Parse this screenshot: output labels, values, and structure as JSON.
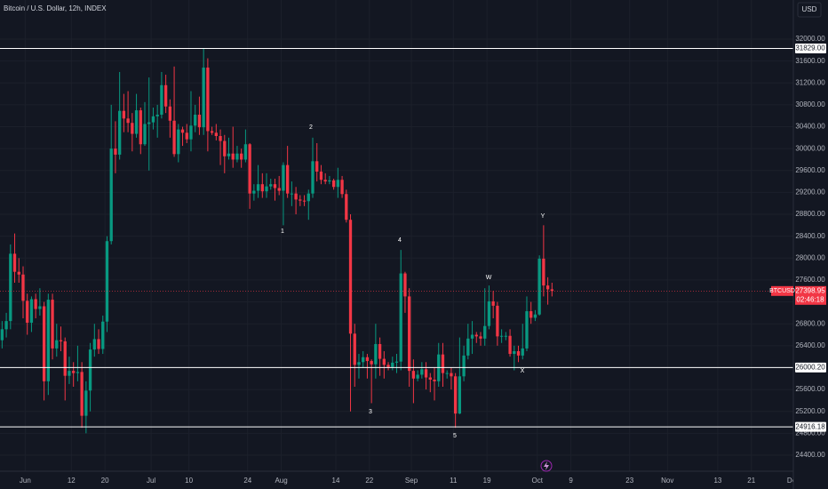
{
  "chart_data": {
    "type": "candlestick",
    "title": "Bitcoin / U.S. Dollar, 12h, INDEX",
    "currency": "USD",
    "up_color": "#089981",
    "down_color": "#f23645",
    "grid": true,
    "x": [
      "05-26",
      "05-27",
      "05-28",
      "05-29",
      "05-30",
      "05-31",
      "06-01",
      "06-02",
      "06-03",
      "06-04",
      "06-05",
      "06-06",
      "06-07",
      "06-08",
      "06-09",
      "06-10",
      "06-11",
      "06-12",
      "06-13",
      "06-14",
      "06-15",
      "06-16",
      "06-17",
      "06-18",
      "06-19",
      "06-20",
      "06-21",
      "06-22",
      "06-23",
      "06-24",
      "06-25",
      "06-26",
      "06-27",
      "06-28",
      "06-29",
      "06-30",
      "07-01",
      "07-02",
      "07-03",
      "07-04",
      "07-05",
      "07-06",
      "07-07",
      "07-08",
      "07-09",
      "07-10",
      "07-11",
      "07-12",
      "07-13",
      "07-14",
      "07-15",
      "07-16",
      "07-17",
      "07-18",
      "07-19",
      "07-20",
      "07-21",
      "07-22",
      "07-23",
      "07-24",
      "07-25",
      "07-26",
      "07-27",
      "07-28",
      "07-29",
      "07-30",
      "07-31",
      "08-01",
      "08-02",
      "08-03",
      "08-04",
      "08-05",
      "08-06",
      "08-07",
      "08-08",
      "08-09",
      "08-10",
      "08-11",
      "08-12",
      "08-13",
      "08-14",
      "08-15",
      "08-16",
      "08-17",
      "08-18",
      "08-19",
      "08-20",
      "08-21",
      "08-22",
      "08-23",
      "08-24",
      "08-25",
      "08-26",
      "08-27",
      "08-28",
      "08-29",
      "08-30",
      "08-31",
      "09-01",
      "09-02",
      "09-03",
      "09-04",
      "09-05",
      "09-06",
      "09-07",
      "09-08",
      "09-09",
      "09-10",
      "09-11",
      "09-12",
      "09-13",
      "09-14",
      "09-15",
      "09-16",
      "09-17",
      "09-18",
      "09-19",
      "09-20",
      "09-21",
      "09-22",
      "09-23",
      "09-24",
      "09-25",
      "09-26",
      "09-27",
      "09-28",
      "09-29",
      "09-30",
      "10-01",
      "10-02",
      "10-03",
      "10-04"
    ],
    "open": [
      26500,
      26700,
      26850,
      28080,
      27750,
      27700,
      27220,
      26820,
      27250,
      27070,
      27120,
      25750,
      27240,
      26350,
      26500,
      26480,
      25850,
      25940,
      25900,
      25920,
      25120,
      25580,
      26330,
      26520,
      26340,
      26840,
      28310,
      30000,
      29890,
      30690,
      30550,
      30470,
      30270,
      30700,
      30080,
      30450,
      30480,
      30590,
      30620,
      31160,
      30770,
      30510,
      29900,
      30350,
      30290,
      30170,
      30420,
      30620,
      30390,
      31480,
      30320,
      30290,
      30230,
      30140,
      29860,
      29910,
      29800,
      29910,
      29800,
      30080,
      29180,
      29230,
      29350,
      29220,
      29310,
      29350,
      29280,
      29230,
      29700,
      29180,
      29180,
      29070,
      29050,
      29040,
      29180,
      29770,
      29580,
      29430,
      29400,
      29420,
      29300,
      29430,
      29170,
      28700,
      26620,
      26050,
      26100,
      26190,
      26120,
      26060,
      26430,
      26160,
      26050,
      26010,
      26090,
      26110,
      27720,
      27300,
      25940,
      25800,
      25870,
      25970,
      25820,
      25780,
      25750,
      26240,
      25900,
      25900,
      25840,
      25160,
      25840,
      26220,
      26530,
      26600,
      26570,
      26530,
      26760,
      27210,
      27130,
      26570,
      26580,
      26580,
      26250,
      26300,
      26220,
      26350,
      27030,
      26910,
      26970,
      27990,
      27500,
      27430
    ],
    "high": [
      26850,
      27000,
      28250,
      28450,
      28000,
      27850,
      27350,
      27300,
      27350,
      27450,
      27200,
      27350,
      27350,
      26800,
      26750,
      26550,
      26200,
      26100,
      26400,
      26100,
      25750,
      26450,
      26800,
      26700,
      26950,
      28400,
      30800,
      30500,
      31400,
      31000,
      31050,
      30650,
      31000,
      30750,
      30850,
      31300,
      30750,
      30800,
      31400,
      31350,
      30900,
      31500,
      30450,
      30400,
      30450,
      31050,
      30800,
      30950,
      31830,
      31650,
      30400,
      30450,
      30350,
      30250,
      30200,
      30400,
      30050,
      30000,
      30350,
      30100,
      29350,
      29700,
      29550,
      29550,
      29450,
      29450,
      29500,
      29750,
      30050,
      29400,
      29300,
      29150,
      29150,
      29250,
      30200,
      30100,
      29700,
      29550,
      29500,
      29450,
      29650,
      29500,
      29250,
      28800,
      26800,
      26250,
      26300,
      26250,
      26150,
      26800,
      26550,
      26300,
      26100,
      26200,
      26250,
      28150,
      27750,
      27450,
      26150,
      25950,
      26100,
      26100,
      25900,
      26000,
      26450,
      26450,
      25950,
      26000,
      25900,
      26550,
      26400,
      26800,
      26850,
      26650,
      26650,
      27450,
      27500,
      27400,
      27200,
      26700,
      26650,
      26700,
      26400,
      26400,
      26800,
      27300,
      27200,
      27050,
      28050,
      28600,
      27650,
      27550
    ],
    "low": [
      26350,
      26550,
      26700,
      27550,
      27550,
      26900,
      26600,
      26650,
      26900,
      26950,
      25400,
      25500,
      26150,
      26200,
      26300,
      25400,
      25700,
      25650,
      25750,
      24900,
      24800,
      25200,
      26200,
      26250,
      26250,
      26650,
      28250,
      29550,
      29800,
      30300,
      30300,
      29950,
      30200,
      29900,
      30050,
      29600,
      30350,
      30200,
      30550,
      30650,
      30200,
      29850,
      29750,
      30050,
      30100,
      29950,
      30300,
      30250,
      30250,
      29950,
      30250,
      30150,
      29700,
      29550,
      29800,
      29650,
      29750,
      29650,
      29750,
      28900,
      29050,
      29100,
      29100,
      29100,
      29250,
      29050,
      29150,
      28600,
      29100,
      28950,
      28800,
      28950,
      28950,
      28700,
      29100,
      29400,
      29350,
      29350,
      29350,
      29250,
      29100,
      29100,
      28650,
      25200,
      25650,
      25800,
      26000,
      25800,
      25350,
      25800,
      25850,
      25800,
      25950,
      25950,
      25900,
      25950,
      27000,
      25650,
      25350,
      25750,
      25800,
      25600,
      25550,
      25400,
      25650,
      25650,
      25800,
      25600,
      24900,
      25150,
      25750,
      26150,
      26250,
      26450,
      26400,
      26400,
      26700,
      26900,
      26400,
      26450,
      26500,
      26200,
      25950,
      26100,
      26150,
      26300,
      26800,
      26850,
      26950,
      27300,
      27150,
      27300
    ],
    "close": [
      26700,
      26850,
      28080,
      27750,
      27700,
      27220,
      26820,
      27250,
      27070,
      27120,
      25750,
      27240,
      26350,
      26500,
      26480,
      25850,
      25940,
      25900,
      25920,
      25120,
      25580,
      26330,
      26520,
      26340,
      26840,
      28310,
      30000,
      29890,
      30690,
      30550,
      30470,
      30270,
      30700,
      30080,
      30450,
      30480,
      30590,
      30620,
      31160,
      30770,
      30510,
      29900,
      30350,
      30290,
      30170,
      30420,
      30620,
      30390,
      31480,
      30320,
      30290,
      30230,
      30140,
      29860,
      29910,
      29800,
      29910,
      29800,
      30080,
      29180,
      29230,
      29350,
      29220,
      29310,
      29350,
      29280,
      29230,
      29700,
      29180,
      29180,
      29070,
      29050,
      29040,
      29180,
      29770,
      29580,
      29430,
      29400,
      29420,
      29300,
      29430,
      29170,
      28700,
      26620,
      26050,
      26100,
      26190,
      26120,
      26060,
      26430,
      26160,
      26050,
      26010,
      26090,
      26110,
      27720,
      27300,
      25940,
      25800,
      25870,
      25970,
      25820,
      25780,
      25750,
      26240,
      25900,
      25900,
      25840,
      25160,
      25840,
      26220,
      26530,
      26600,
      26570,
      26530,
      26760,
      27210,
      27130,
      26570,
      26580,
      26580,
      26250,
      26300,
      26220,
      26350,
      27030,
      26910,
      26970,
      27990,
      27500,
      27430,
      27400
    ],
    "xlim": [
      "05-26",
      "12-01"
    ],
    "xticks": [
      {
        "value": "06-01",
        "label": "Jun"
      },
      {
        "value": "06-12",
        "label": "12"
      },
      {
        "value": "06-20",
        "label": "20"
      },
      {
        "value": "07-01",
        "label": "Jul"
      },
      {
        "value": "07-10",
        "label": "10"
      },
      {
        "value": "07-24",
        "label": "24"
      },
      {
        "value": "08-01",
        "label": "Aug"
      },
      {
        "value": "08-14",
        "label": "14"
      },
      {
        "value": "08-22",
        "label": "22"
      },
      {
        "value": "09-01",
        "label": "Sep"
      },
      {
        "value": "09-11",
        "label": "11"
      },
      {
        "value": "09-19",
        "label": "19"
      },
      {
        "value": "10-01",
        "label": "Oct"
      },
      {
        "value": "10-09",
        "label": "9"
      },
      {
        "value": "10-23",
        "label": "23"
      },
      {
        "value": "11-01",
        "label": "Nov"
      },
      {
        "value": "11-13",
        "label": "13"
      },
      {
        "value": "11-21",
        "label": "21"
      },
      {
        "value": "12-01",
        "label": "Dec"
      }
    ],
    "ylim": [
      24107,
      32715
    ],
    "yticks": [
      {
        "value": 24400,
        "label": "24400.00"
      },
      {
        "value": 24800,
        "label": "24800.00"
      },
      {
        "value": 25200,
        "label": "25200.00"
      },
      {
        "value": 25600,
        "label": "25600.00"
      },
      {
        "value": 26000,
        "label": "26000.00"
      },
      {
        "value": 26400,
        "label": "26400.00"
      },
      {
        "value": 26800,
        "label": "26800.00"
      },
      {
        "value": 27200,
        "label": "27200.00"
      },
      {
        "value": 27600,
        "label": "27600.00"
      },
      {
        "value": 28000,
        "label": "28000.00"
      },
      {
        "value": 28400,
        "label": "28400.00"
      },
      {
        "value": 28800,
        "label": "28800.00"
      },
      {
        "value": 29200,
        "label": "29200.00"
      },
      {
        "value": 29600,
        "label": "29600.00"
      },
      {
        "value": 30000,
        "label": "30000.00"
      },
      {
        "value": 30400,
        "label": "30400.00"
      },
      {
        "value": 30800,
        "label": "30800.00"
      },
      {
        "value": 31200,
        "label": "31200.00"
      },
      {
        "value": 31600,
        "label": "31600.00"
      },
      {
        "value": 32000,
        "label": "32000.00"
      }
    ],
    "horizontal_lines": [
      {
        "value": 31829,
        "label": "31829.00"
      },
      {
        "value": 26000.2,
        "label": "26000.20"
      },
      {
        "value": 24916.18,
        "label": "24916.18"
      }
    ],
    "last_price": {
      "symbol": "BTCUSD",
      "value": 27398.95,
      "label": "27398.95",
      "countdown": "02:46:18"
    },
    "annotations": [
      "2",
      "1",
      "4",
      "3",
      "5",
      "W",
      "X",
      "Y"
    ]
  }
}
